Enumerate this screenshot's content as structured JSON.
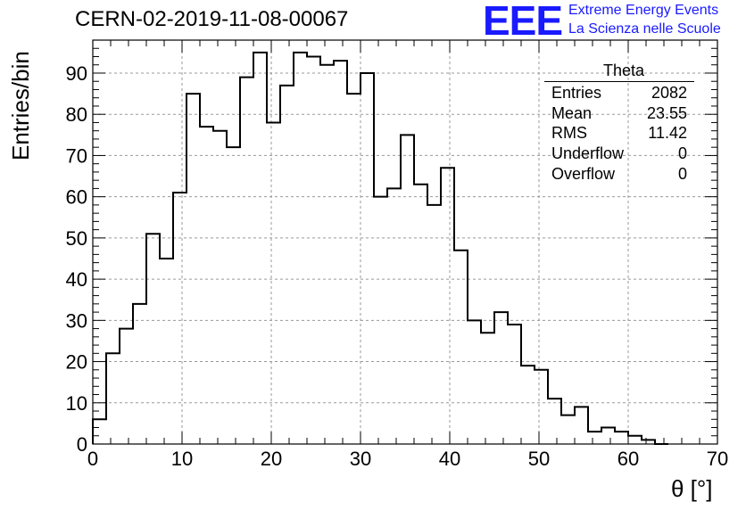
{
  "header": {
    "run_title": "CERN-02-2019-11-08-00067",
    "logo_text": "EEE",
    "logo_line1": "Extreme Energy Events",
    "logo_line2": "La Scienza nelle Scuole"
  },
  "stats": {
    "title": "Theta",
    "rows": [
      {
        "label": "Entries",
        "value": "2082"
      },
      {
        "label": "Mean",
        "value": "23.55"
      },
      {
        "label": "RMS",
        "value": "11.42"
      },
      {
        "label": "Underflow",
        "value": "0"
      },
      {
        "label": "Overflow",
        "value": "0"
      }
    ]
  },
  "colors": {
    "histogram": "#000000",
    "grid": "#999999",
    "logo": "#1a1aff"
  },
  "chart_data": {
    "type": "bar",
    "style": "step-histogram",
    "xlabel": "θ [°]",
    "ylabel": "Entries/bin",
    "xlim": [
      0,
      70
    ],
    "ylim": [
      0,
      98
    ],
    "grid": true,
    "bin_width": 1.5,
    "x_start": 0,
    "values": [
      6,
      22,
      28,
      34,
      51,
      45,
      61,
      85,
      77,
      76,
      72,
      89,
      95,
      78,
      87,
      95,
      94,
      92,
      93,
      85,
      90,
      60,
      62,
      75,
      63,
      58,
      67,
      47,
      30,
      27,
      32,
      29,
      19,
      18,
      11,
      7,
      9,
      3,
      4,
      3,
      2,
      1,
      0
    ],
    "xticks": [
      "0",
      "10",
      "20",
      "30",
      "40",
      "50",
      "60",
      "70"
    ],
    "yticks": [
      "0",
      "10",
      "20",
      "30",
      "40",
      "50",
      "60",
      "70",
      "80",
      "90"
    ]
  }
}
